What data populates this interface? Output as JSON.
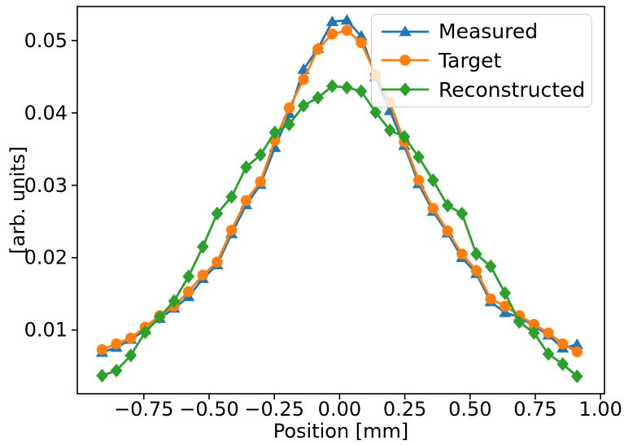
{
  "chart_data": {
    "type": "line",
    "title": "",
    "xlabel": "Position [mm]",
    "ylabel": "[arb. units]",
    "grid": false,
    "legend_position": "upper right",
    "xlim": [
      -1.005,
      1.015
    ],
    "ylim": [
      0.0012,
      0.0547
    ],
    "xticks": [
      -0.75,
      -0.5,
      -0.25,
      0.0,
      0.25,
      0.5,
      0.75,
      1.0
    ],
    "xtick_labels": [
      "−0.75",
      "−0.50",
      "−0.25",
      "0.00",
      "0.25",
      "0.50",
      "0.75",
      "1.00"
    ],
    "yticks": [
      0.01,
      0.02,
      0.03,
      0.04,
      0.05
    ],
    "ytick_labels": [
      "0.01",
      "0.02",
      "0.03",
      "0.04",
      "0.05"
    ],
    "x": [
      -0.91,
      -0.855,
      -0.8,
      -0.745,
      -0.689,
      -0.634,
      -0.579,
      -0.524,
      -0.469,
      -0.414,
      -0.358,
      -0.303,
      -0.248,
      -0.193,
      -0.138,
      -0.083,
      -0.028,
      0.028,
      0.083,
      0.138,
      0.193,
      0.248,
      0.303,
      0.358,
      0.414,
      0.469,
      0.524,
      0.579,
      0.634,
      0.689,
      0.745,
      0.8,
      0.855,
      0.91
    ],
    "series": [
      {
        "name": "Measured",
        "color": "#1f77b4",
        "marker": "triangle-up",
        "values": [
          0.0069,
          0.0076,
          0.0087,
          0.01,
          0.0116,
          0.013,
          0.0146,
          0.0171,
          0.019,
          0.0233,
          0.0273,
          0.0301,
          0.0352,
          0.0399,
          0.046,
          0.0489,
          0.0526,
          0.0528,
          0.0506,
          0.045,
          0.0403,
          0.0355,
          0.0302,
          0.0264,
          0.0234,
          0.02,
          0.0178,
          0.0139,
          0.0124,
          0.0118,
          0.0106,
          0.0093,
          0.0075,
          0.008
        ]
      },
      {
        "name": "Target",
        "color": "#ff7f0e",
        "marker": "circle",
        "values": [
          0.0073,
          0.0081,
          0.0089,
          0.0104,
          0.012,
          0.0133,
          0.0153,
          0.0176,
          0.0194,
          0.0238,
          0.0279,
          0.0305,
          0.0362,
          0.0407,
          0.0446,
          0.0488,
          0.0509,
          0.0514,
          0.0497,
          0.0453,
          0.0414,
          0.036,
          0.0307,
          0.0268,
          0.0237,
          0.0205,
          0.0182,
          0.0143,
          0.0133,
          0.012,
          0.0108,
          0.0096,
          0.0081,
          0.007
        ]
      },
      {
        "name": "Reconstructed",
        "color": "#2ca02c",
        "marker": "diamond",
        "values": [
          0.0037,
          0.0044,
          0.0065,
          0.0097,
          0.0118,
          0.014,
          0.0174,
          0.0215,
          0.0261,
          0.0284,
          0.0325,
          0.0342,
          0.0373,
          0.0384,
          0.041,
          0.0421,
          0.0437,
          0.0435,
          0.043,
          0.0401,
          0.0376,
          0.0367,
          0.0339,
          0.0307,
          0.0272,
          0.0261,
          0.0205,
          0.0188,
          0.0151,
          0.0111,
          0.0096,
          0.0067,
          0.0053,
          0.0036
        ]
      }
    ]
  }
}
